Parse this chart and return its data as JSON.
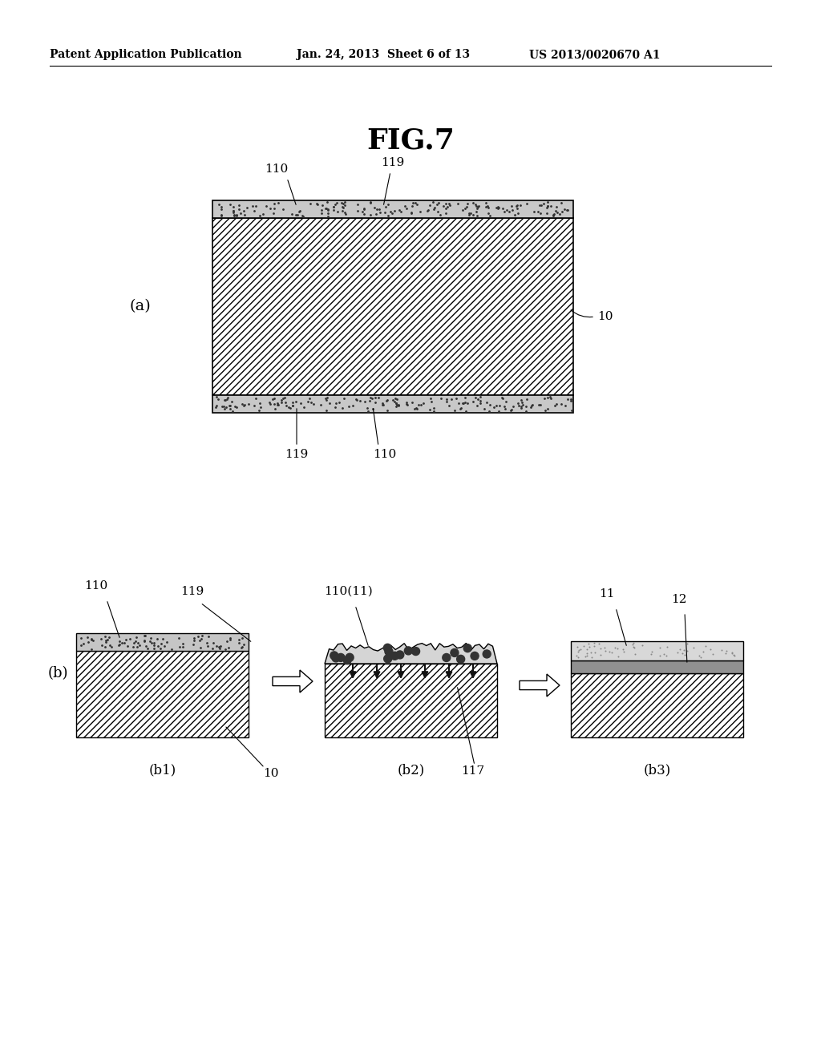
{
  "title": "FIG.7",
  "header_left": "Patent Application Publication",
  "header_mid": "Jan. 24, 2013  Sheet 6 of 13",
  "header_right": "US 2013/0020670 A1",
  "background_color": "#ffffff",
  "label_a": "(a)",
  "label_b": "(b)",
  "label_b1": "(b1)",
  "label_b2": "(b2)",
  "label_b3": "(b3)",
  "ref_10": "10",
  "ref_11": "11",
  "ref_12": "12",
  "ref_110": "110",
  "ref_119": "119",
  "ref_117": "117",
  "ref_110_11": "110(11)"
}
